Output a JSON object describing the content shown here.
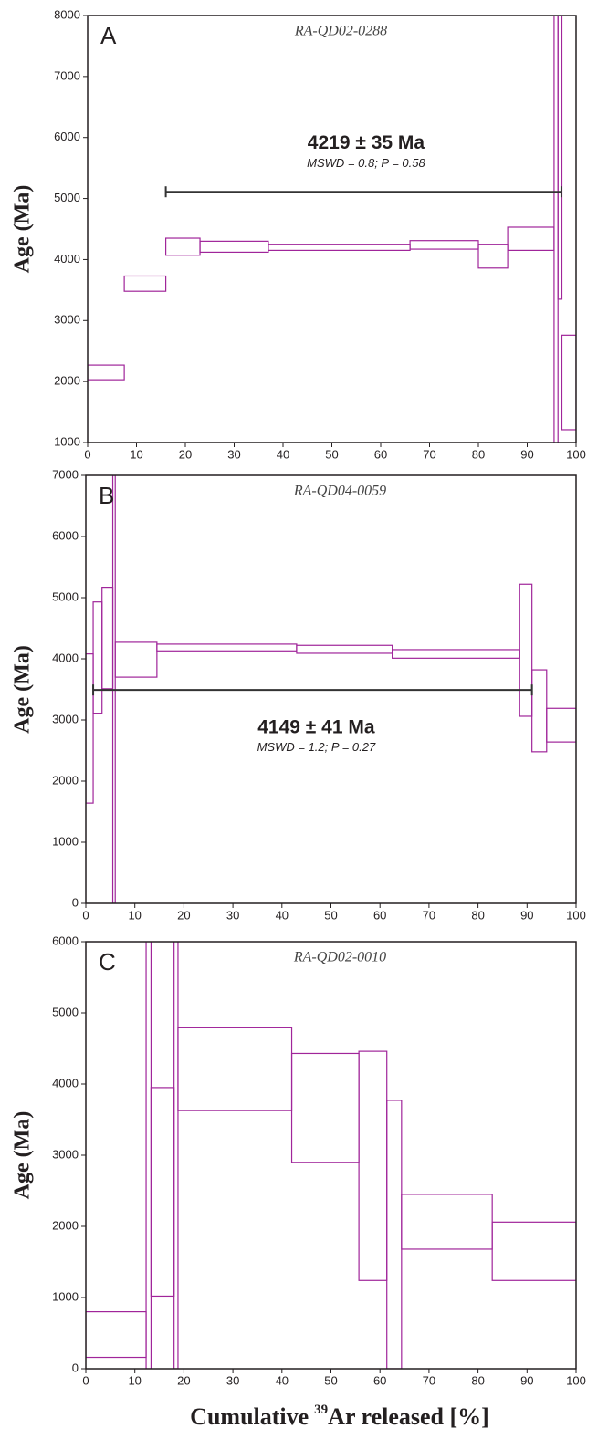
{
  "chart_data": [
    {
      "type": "age-spectrum",
      "panel_label": "A",
      "sample": "RA-QD02-0288",
      "ylabel": "Age (Ma)",
      "color": "#a0259a",
      "xlim": [
        0,
        100
      ],
      "xticks": [
        0,
        10,
        20,
        30,
        40,
        50,
        60,
        70,
        80,
        90,
        100
      ],
      "ylim": [
        1000,
        8000
      ],
      "yticks": [
        1000,
        2000,
        3000,
        4000,
        5000,
        6000,
        7000,
        8000
      ],
      "steps": {
        "x_start": [
          0,
          7.5,
          16,
          23,
          37,
          66,
          80,
          86,
          95.5,
          96.3,
          97.1
        ],
        "x_end": [
          7.5,
          16,
          23,
          37,
          66,
          80,
          86,
          95.5,
          96.3,
          97.1,
          100
        ],
        "age_min": [
          2030,
          3480,
          4070,
          4120,
          4150,
          4170,
          3860,
          4150,
          900,
          3350,
          1210
        ],
        "age_max": [
          2270,
          3730,
          4350,
          4300,
          4250,
          4310,
          4250,
          4530,
          8500,
          8500,
          2760
        ]
      },
      "plateau": {
        "x_start": 16,
        "x_end": 97,
        "age": 5110
      },
      "annotation": {
        "age_text": "4219 ± 35 Ma",
        "stats_text": "MSWD = 0.8; P = 0.58"
      }
    },
    {
      "type": "age-spectrum",
      "panel_label": "B",
      "sample": "RA-QD04-0059",
      "ylabel": "Age (Ma)",
      "color": "#a0259a",
      "xlim": [
        0,
        100
      ],
      "xticks": [
        0,
        10,
        20,
        30,
        40,
        50,
        60,
        70,
        80,
        90,
        100
      ],
      "ylim": [
        0,
        7000
      ],
      "yticks": [
        0,
        1000,
        2000,
        3000,
        4000,
        5000,
        6000,
        7000
      ],
      "steps": {
        "x_start": [
          0,
          1.5,
          3.3,
          5.5,
          6,
          14.5,
          43,
          62.5,
          88.5,
          91,
          94
        ],
        "x_end": [
          1.5,
          3.3,
          5.5,
          6,
          14.5,
          43,
          62.5,
          88.5,
          91,
          94,
          100
        ],
        "age_min": [
          1640,
          3110,
          3510,
          0,
          3700,
          4130,
          4090,
          4010,
          3060,
          2480,
          2640
        ],
        "age_max": [
          4080,
          4930,
          5170,
          7000,
          4270,
          4240,
          4220,
          4150,
          5220,
          3820,
          3190
        ]
      },
      "plateau": {
        "x_start": 1.5,
        "x_end": 91,
        "age": 3490
      },
      "annotation": {
        "age_text": "4149 ± 41 Ma",
        "stats_text": "MSWD = 1.2; P = 0.27"
      }
    },
    {
      "type": "age-spectrum",
      "panel_label": "C",
      "sample": "RA-QD02-0010",
      "ylabel": "Age (Ma)",
      "color": "#a0259a",
      "xlim": [
        0,
        100
      ],
      "xticks": [
        0,
        10,
        20,
        30,
        40,
        50,
        60,
        70,
        80,
        90,
        100
      ],
      "ylim": [
        0,
        6000
      ],
      "yticks": [
        0,
        1000,
        2000,
        3000,
        4000,
        5000,
        6000
      ],
      "steps": {
        "x_start": [
          0,
          12.3,
          13.3,
          18,
          18.8,
          42,
          55.7,
          61.4,
          64.4,
          82.9
        ],
        "x_end": [
          12.3,
          13.3,
          18,
          18.8,
          42,
          55.7,
          61.4,
          64.4,
          82.9,
          100
        ],
        "age_min": [
          160,
          0,
          1020,
          0,
          3630,
          2900,
          1240,
          0,
          1680,
          1240
        ],
        "age_max": [
          800,
          6200,
          3950,
          6200,
          4790,
          4430,
          4460,
          3770,
          2450,
          2060
        ]
      }
    }
  ],
  "xlabel": {
    "pre": "Cumulative",
    "sup": "39",
    "post": "Ar released [%]"
  }
}
